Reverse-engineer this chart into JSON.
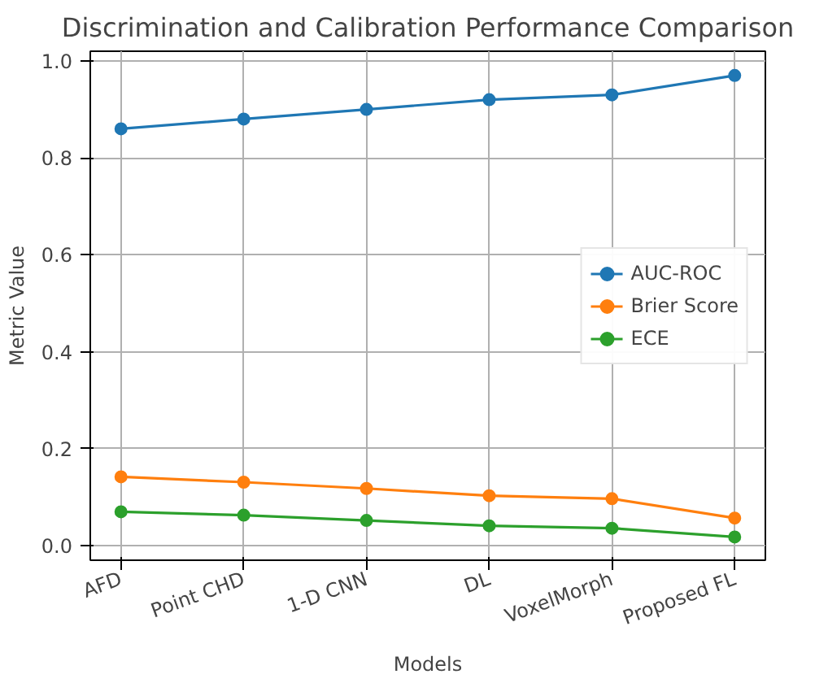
{
  "chart_data": {
    "type": "line",
    "title": "Discrimination and Calibration Performance Comparison",
    "xlabel": "Models",
    "ylabel": "Metric Value",
    "categories": [
      "AFD",
      "Point CHD",
      "1-D CNN",
      "DL",
      "VoxelMorph",
      "Proposed FL"
    ],
    "series": [
      {
        "name": "AUC-ROC",
        "color": "#1f77b4",
        "values": [
          0.86,
          0.88,
          0.9,
          0.92,
          0.93,
          0.97
        ]
      },
      {
        "name": "Brier Score",
        "color": "#ff7f0e",
        "values": [
          0.142,
          0.131,
          0.118,
          0.103,
          0.097,
          0.057
        ]
      },
      {
        "name": "ECE",
        "color": "#2ca02c",
        "values": [
          0.07,
          0.063,
          0.052,
          0.041,
          0.036,
          0.018
        ]
      }
    ],
    "ylim": [
      -0.03,
      1.02
    ],
    "yticks": [
      {
        "value": 0,
        "label": "0.0"
      },
      {
        "value": 0.2,
        "label": "0.2"
      },
      {
        "value": 0.4,
        "label": "0.4"
      },
      {
        "value": 0.6,
        "label": "0.6"
      },
      {
        "value": 0.8,
        "label": "0.8"
      },
      {
        "value": 1,
        "label": "1.0"
      }
    ],
    "grid": true,
    "legend": "right",
    "marker": "circle",
    "line_style": "solid"
  }
}
